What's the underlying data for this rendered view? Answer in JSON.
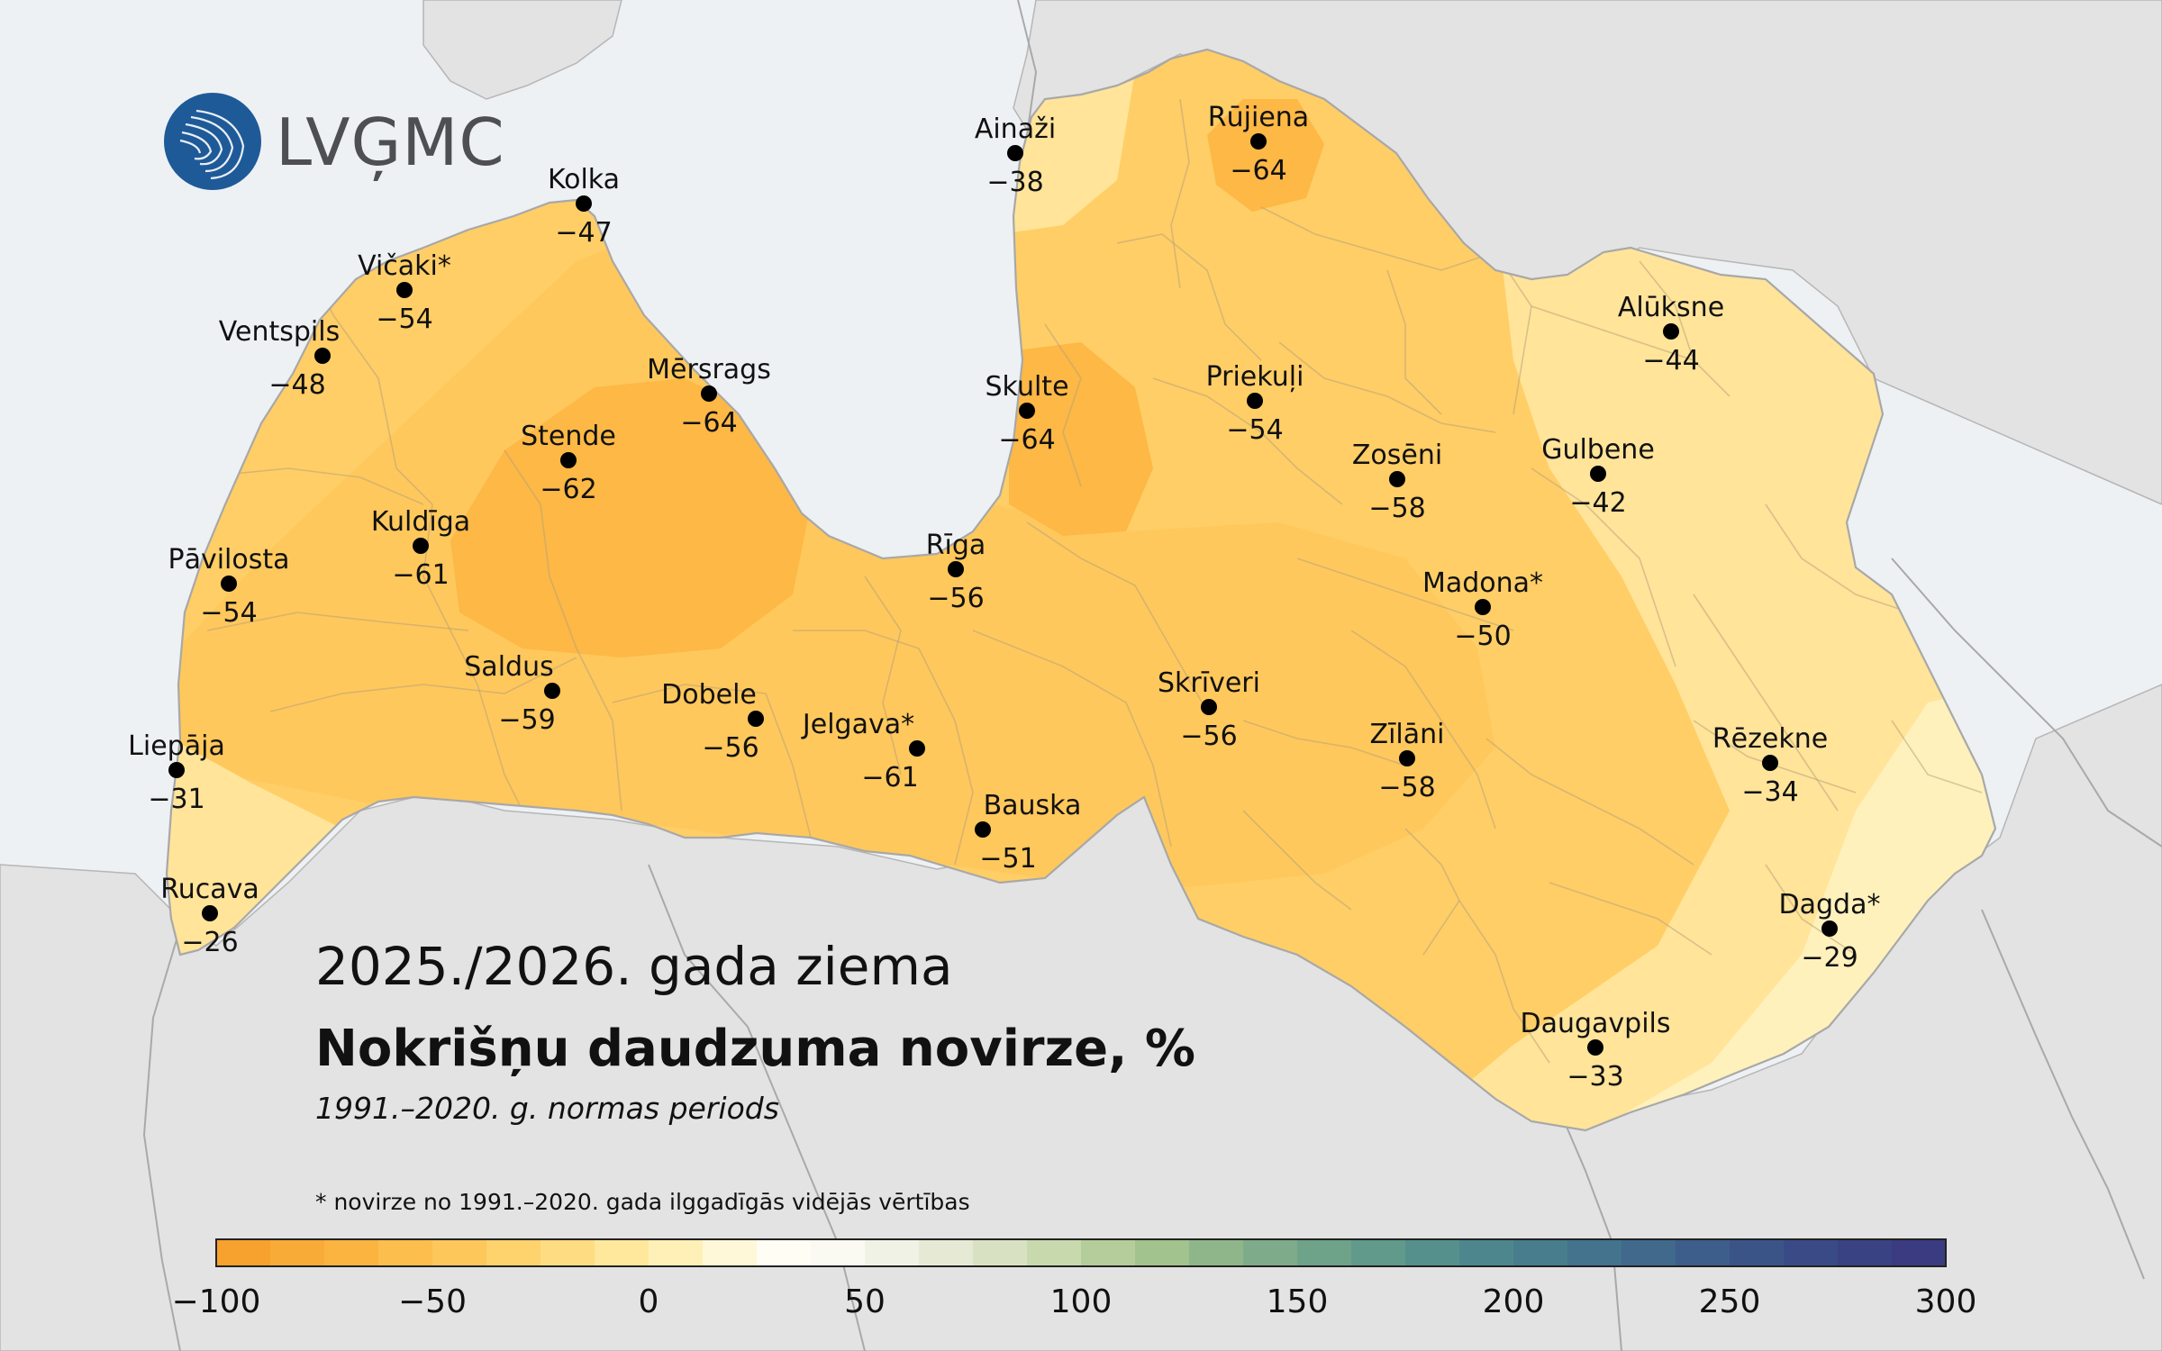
{
  "logo": {
    "text": "LVĢMC"
  },
  "title": {
    "season": "2025./2026. gada ziema",
    "heading": "Nokrišņu daudzuma novirze, %",
    "subtitle": "1991.–2020. g. normas periods"
  },
  "footnote": "* novirze no 1991.–2020. gada ilggadīgās vidējās vērtības",
  "colors": {
    "sea": "#eef1f4",
    "land_neighbour": "#e3e3e3",
    "latvia_base": "#ffce66",
    "zone_strong": "#fdb845",
    "zone_medium": "#ffc85c",
    "zone_light": "#ffe49a",
    "zone_lightest": "#fff1bc",
    "border": "#a8a8a8"
  },
  "stations": [
    {
      "name": "Kolka",
      "value": "−47"
    },
    {
      "name": "Vičaki*",
      "value": "−54"
    },
    {
      "name": "Ventspils",
      "value": "−48"
    },
    {
      "name": "Mērsrags",
      "value": "−64"
    },
    {
      "name": "Stende",
      "value": "−62"
    },
    {
      "name": "Kuldīga",
      "value": "−61"
    },
    {
      "name": "Pāvilosta",
      "value": "−54"
    },
    {
      "name": "Saldus",
      "value": "−59"
    },
    {
      "name": "Dobele",
      "value": "−56"
    },
    {
      "name": "Jelgava*",
      "value": "−61"
    },
    {
      "name": "Liepāja",
      "value": "−31"
    },
    {
      "name": "Rucava",
      "value": "−26"
    },
    {
      "name": "Ainaži",
      "value": "−38"
    },
    {
      "name": "Rūjiena",
      "value": "−64"
    },
    {
      "name": "Skulte",
      "value": "−64"
    },
    {
      "name": "Rīga",
      "value": "−56"
    },
    {
      "name": "Bauska",
      "value": "−51"
    },
    {
      "name": "Priekuļi",
      "value": "−54"
    },
    {
      "name": "Zosēni",
      "value": "−58"
    },
    {
      "name": "Gulbene",
      "value": "−42"
    },
    {
      "name": "Alūksne",
      "value": "−44"
    },
    {
      "name": "Madona*",
      "value": "−50"
    },
    {
      "name": "Skrīveri",
      "value": "−56"
    },
    {
      "name": "Zīlāni",
      "value": "−58"
    },
    {
      "name": "Rēzekne",
      "value": "−34"
    },
    {
      "name": "Dagda*",
      "value": "−29"
    },
    {
      "name": "Daugavpils",
      "value": "−33"
    }
  ],
  "colorbar": {
    "min": -100,
    "max": 300,
    "ticks": [
      {
        "value": -100,
        "label": "−100"
      },
      {
        "value": -50,
        "label": "−50"
      },
      {
        "value": 0,
        "label": "0"
      },
      {
        "value": 50,
        "label": "50"
      },
      {
        "value": 100,
        "label": "100"
      },
      {
        "value": 150,
        "label": "150"
      },
      {
        "value": 200,
        "label": "200"
      },
      {
        "value": 250,
        "label": "250"
      },
      {
        "value": 300,
        "label": "300"
      }
    ],
    "colors": [
      "#f7a12e",
      "#f9ab37",
      "#fbb440",
      "#fcbe4c",
      "#fdc75a",
      "#fed26c",
      "#fedd82",
      "#ffe79b",
      "#fff0b8",
      "#fff8d8",
      "#fffdf4",
      "#fafaf2",
      "#f1f2e6",
      "#e6ead5",
      "#d8e2c2",
      "#c8d9ae",
      "#b5cd9b",
      "#a2c28e",
      "#8fb68a",
      "#7eab89",
      "#6ea289",
      "#61998b",
      "#56908c",
      "#4d878d",
      "#477d8d",
      "#43738d",
      "#40698c",
      "#3d5e8a",
      "#3b5488",
      "#3a4a86",
      "#394283",
      "#3a3b80"
    ]
  }
}
